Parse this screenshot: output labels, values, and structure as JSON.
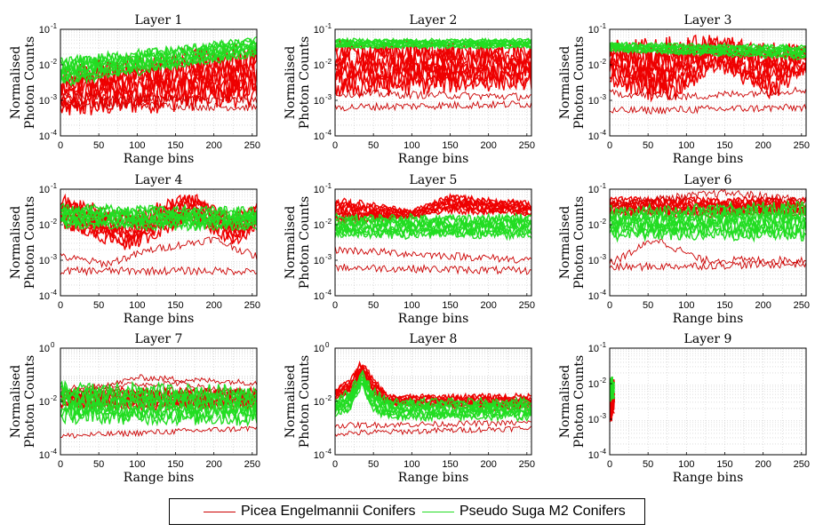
{
  "chart_data": [
    {
      "type": "line",
      "title": "Layer 1",
      "xlabel": "Range bins",
      "ylabel": [
        "Normalised",
        "Photon Counts"
      ],
      "xlim": [
        0,
        256
      ],
      "ylim_exp": [
        -4,
        -1
      ],
      "xticks": [
        "0",
        "50",
        "100",
        "150",
        "200",
        "250"
      ],
      "yticks": [
        -4,
        -3,
        -2,
        -1
      ],
      "series": [
        {
          "name": "Picea Engelmannii Conifers",
          "color": "#ee0000",
          "band": {
            "x": [
              0,
              256
            ],
            "low": [
              -3.3,
              -2.9
            ],
            "high": [
              -2.2,
              -1.6
            ]
          },
          "lines": [
            {
              "x": [
                0,
                256
              ],
              "y": [
                -3.1,
                -3.2
              ]
            },
            {
              "x": [
                0,
                256
              ],
              "y": [
                -2.9,
                -3.0
              ]
            }
          ]
        },
        {
          "name": "Pseudo Suga M2 Conifers",
          "color": "#22dd22",
          "band": {
            "x": [
              0,
              256
            ],
            "low": [
              -2.5,
              -1.7
            ],
            "high": [
              -1.9,
              -1.3
            ]
          },
          "lines": []
        }
      ]
    },
    {
      "type": "line",
      "title": "Layer 2",
      "xlabel": "Range bins",
      "ylabel": [
        "Normalised",
        "Photon Counts"
      ],
      "xlim": [
        0,
        256
      ],
      "ylim_exp": [
        -4,
        -1
      ],
      "xticks": [
        "0",
        "50",
        "100",
        "150",
        "200",
        "250"
      ],
      "yticks": [
        -4,
        -3,
        -2,
        -1
      ],
      "series": [
        {
          "name": "Picea Engelmannii Conifers",
          "color": "#ee0000",
          "band": {
            "x": [
              0,
              256
            ],
            "low": [
              -2.7,
              -2.5
            ],
            "high": [
              -1.5,
              -1.6
            ]
          },
          "lines": [
            {
              "x": [
                0,
                256
              ],
              "y": [
                -3.2,
                -3.1
              ]
            },
            {
              "x": [
                0,
                256
              ],
              "y": [
                -2.8,
                -2.9
              ]
            }
          ]
        },
        {
          "name": "Pseudo Suga M2 Conifers",
          "color": "#22dd22",
          "band": {
            "x": [
              0,
              256
            ],
            "low": [
              -1.5,
              -1.5
            ],
            "high": [
              -1.3,
              -1.3
            ]
          },
          "lines": []
        }
      ]
    },
    {
      "type": "line",
      "title": "Layer 3",
      "xlabel": "Range bins",
      "ylabel": [
        "Normalised",
        "Photon Counts"
      ],
      "xlim": [
        0,
        256
      ],
      "ylim_exp": [
        -4,
        -1
      ],
      "xticks": [
        "0",
        "50",
        "100",
        "150",
        "200",
        "250"
      ],
      "yticks": [
        -4,
        -3,
        -2,
        -1
      ],
      "series": [
        {
          "name": "Picea Engelmannii Conifers",
          "color": "#ee0000",
          "band": {
            "x": [
              0,
              75,
              140,
              210,
              256
            ],
            "low": [
              -2.4,
              -2.9,
              -2.0,
              -2.8,
              -2.1
            ],
            "high": [
              -1.5,
              -1.5,
              -1.3,
              -1.6,
              -1.5
            ]
          },
          "lines": [
            {
              "x": [
                0,
                256
              ],
              "y": [
                -3.3,
                -3.2
              ]
            },
            {
              "x": [
                0,
                100,
                256
              ],
              "y": [
                -2.8,
                -2.9,
                -2.7
              ]
            }
          ]
        },
        {
          "name": "Pseudo Suga M2 Conifers",
          "color": "#22dd22",
          "band": {
            "x": [
              0,
              256
            ],
            "low": [
              -1.6,
              -1.8
            ],
            "high": [
              -1.4,
              -1.5
            ]
          },
          "lines": []
        }
      ]
    },
    {
      "type": "line",
      "title": "Layer 4",
      "xlabel": "Range bins",
      "ylabel": [
        "Normalised",
        "Photon Counts"
      ],
      "xlim": [
        0,
        256
      ],
      "ylim_exp": [
        -4,
        -1
      ],
      "xticks": [
        "0",
        "50",
        "100",
        "150",
        "200",
        "250"
      ],
      "yticks": [
        -4,
        -3,
        -2,
        -1
      ],
      "series": [
        {
          "name": "Picea Engelmannii Conifers",
          "color": "#ee0000",
          "band": {
            "x": [
              0,
              90,
              170,
              230,
              256
            ],
            "low": [
              -2.0,
              -2.6,
              -1.8,
              -2.5,
              -2.0
            ],
            "high": [
              -1.3,
              -1.8,
              -1.2,
              -1.8,
              -1.5
            ]
          },
          "lines": [
            {
              "x": [
                0,
                256
              ],
              "y": [
                -3.3,
                -3.3
              ]
            },
            {
              "x": [
                0,
                60,
                120,
                200,
                256
              ],
              "y": [
                -2.9,
                -3.1,
                -2.7,
                -2.4,
                -2.9
              ]
            }
          ]
        },
        {
          "name": "Pseudo Suga M2 Conifers",
          "color": "#22dd22",
          "band": {
            "x": [
              0,
              256
            ],
            "low": [
              -2.0,
              -2.1
            ],
            "high": [
              -1.5,
              -1.6
            ]
          },
          "lines": []
        }
      ]
    },
    {
      "type": "line",
      "title": "Layer 5",
      "xlabel": "Range bins",
      "ylabel": [
        "Normalised",
        "Photon Counts"
      ],
      "xlim": [
        0,
        256
      ],
      "ylim_exp": [
        -4,
        -1
      ],
      "xticks": [
        "0",
        "50",
        "100",
        "150",
        "200",
        "250"
      ],
      "yticks": [
        -4,
        -3,
        -2,
        -1
      ],
      "series": [
        {
          "name": "Picea Engelmannii Conifers",
          "color": "#ee0000",
          "band": {
            "x": [
              0,
              100,
              150,
              256
            ],
            "low": [
              -1.9,
              -1.8,
              -1.6,
              -1.7
            ],
            "high": [
              -1.3,
              -1.6,
              -1.2,
              -1.4
            ]
          },
          "lines": [
            {
              "x": [
                0,
                256
              ],
              "y": [
                -3.2,
                -3.3
              ]
            },
            {
              "x": [
                0,
                256
              ],
              "y": [
                -2.7,
                -3.0
              ]
            }
          ]
        },
        {
          "name": "Pseudo Suga M2 Conifers",
          "color": "#22dd22",
          "band": {
            "x": [
              0,
              256
            ],
            "low": [
              -2.3,
              -2.3
            ],
            "high": [
              -1.8,
              -1.8
            ]
          },
          "lines": []
        }
      ]
    },
    {
      "type": "line",
      "title": "Layer 6",
      "xlabel": "Range bins",
      "ylabel": [
        "Normalised",
        "Photon Counts"
      ],
      "xlim": [
        0,
        256
      ],
      "ylim_exp": [
        -4,
        -1
      ],
      "xticks": [
        "0",
        "50",
        "100",
        "150",
        "200",
        "250"
      ],
      "yticks": [
        -4,
        -3,
        -2,
        -1
      ],
      "series": [
        {
          "name": "Picea Engelmannii Conifers",
          "color": "#ee0000",
          "band": {
            "x": [
              0,
              256
            ],
            "low": [
              -1.7,
              -1.7
            ],
            "high": [
              -1.3,
              -1.3
            ]
          },
          "lines": [
            {
              "x": [
                0,
                256
              ],
              "y": [
                -3.2,
                -3.1
              ]
            },
            {
              "x": [
                0,
                60,
                120,
                256
              ],
              "y": [
                -3.1,
                -2.4,
                -3.0,
                -3.0
              ]
            },
            {
              "x": [
                0,
                150,
                256
              ],
              "y": [
                -1.4,
                -1.1,
                -1.3
              ]
            }
          ]
        },
        {
          "name": "Pseudo Suga M2 Conifers",
          "color": "#22dd22",
          "band": {
            "x": [
              0,
              256
            ],
            "low": [
              -2.3,
              -2.3
            ],
            "high": [
              -1.6,
              -1.5
            ]
          },
          "lines": []
        }
      ]
    },
    {
      "type": "line",
      "title": "Layer 7",
      "xlabel": "Range bins",
      "ylabel": [
        "Normalised",
        "Photon Counts"
      ],
      "xlim": [
        0,
        256
      ],
      "ylim_exp": [
        -4,
        0
      ],
      "xticks": [
        "0",
        "50",
        "100",
        "150",
        "200",
        "250"
      ],
      "yticks": [
        -4,
        -2,
        0
      ],
      "series": [
        {
          "name": "Picea Engelmannii Conifers",
          "color": "#ee0000",
          "band": {
            "x": [
              0,
              256
            ],
            "low": [
              -2.2,
              -2.2
            ],
            "high": [
              -1.6,
              -1.6
            ]
          },
          "lines": [
            {
              "x": [
                0,
                256
              ],
              "y": [
                -3.3,
                -3.0
              ]
            },
            {
              "x": [
                0,
                100,
                256
              ],
              "y": [
                -1.9,
                -1.1,
                -1.3
              ]
            },
            {
              "x": [
                0,
                150,
                256
              ],
              "y": [
                -1.5,
                -1.3,
                -1.8
              ]
            }
          ]
        },
        {
          "name": "Pseudo Suga M2 Conifers",
          "color": "#22dd22",
          "band": {
            "x": [
              0,
              256
            ],
            "low": [
              -2.6,
              -2.7
            ],
            "high": [
              -1.5,
              -1.6
            ]
          },
          "lines": []
        }
      ]
    },
    {
      "type": "line",
      "title": "Layer 8",
      "xlabel": "Range bins",
      "ylabel": [
        "Normalised",
        "Photon Counts"
      ],
      "xlim": [
        0,
        256
      ],
      "ylim_exp": [
        -4,
        0
      ],
      "xticks": [
        "0",
        "50",
        "100",
        "150",
        "200",
        "250"
      ],
      "yticks": [
        -4,
        -2,
        0
      ],
      "series": [
        {
          "name": "Picea Engelmannii Conifers",
          "color": "#ee0000",
          "band": {
            "x": [
              0,
              20,
              35,
              50,
              70,
              256
            ],
            "low": [
              -1.9,
              -1.7,
              -1.0,
              -1.7,
              -2.1,
              -2.3
            ],
            "high": [
              -1.6,
              -1.2,
              -0.5,
              -1.2,
              -1.8,
              -1.8
            ]
          },
          "lines": [
            {
              "x": [
                0,
                256
              ],
              "y": [
                -3.2,
                -3.0
              ]
            },
            {
              "x": [
                0,
                256
              ],
              "y": [
                -2.9,
                -2.8
              ]
            }
          ]
        },
        {
          "name": "Pseudo Suga M2 Conifers",
          "color": "#22dd22",
          "band": {
            "x": [
              0,
              20,
              35,
              50,
              70,
              256
            ],
            "low": [
              -2.5,
              -2.3,
              -1.4,
              -2.3,
              -2.6,
              -2.6
            ],
            "high": [
              -2.0,
              -1.6,
              -0.9,
              -1.6,
              -2.0,
              -2.0
            ]
          },
          "lines": []
        }
      ]
    },
    {
      "type": "line",
      "title": "Layer 9",
      "xlabel": "Range bins",
      "ylabel": [
        "Normalised",
        "Photon Counts"
      ],
      "xlim": [
        0,
        256
      ],
      "ylim_exp": [
        -4,
        -1
      ],
      "xticks": [
        "0",
        "50",
        "100",
        "150",
        "200",
        "250"
      ],
      "yticks": [
        -4,
        -3,
        -2,
        -1
      ],
      "series": [
        {
          "name": "Picea Engelmannii Conifers",
          "color": "#ee0000",
          "band": {
            "x": [
              0,
              6
            ],
            "low": [
              -3.1,
              -2.7
            ],
            "high": [
              -2.2,
              -2.0
            ]
          },
          "lines": []
        },
        {
          "name": "Pseudo Suga M2 Conifers",
          "color": "#22dd22",
          "band": {
            "x": [
              0,
              6
            ],
            "low": [
              -2.4,
              -2.4
            ],
            "high": [
              -1.9,
              -1.9
            ]
          },
          "lines": []
        }
      ]
    }
  ],
  "legend": [
    {
      "label": "Picea Engelmannii Conifers",
      "color": "#cc0000"
    },
    {
      "label": "Pseudo Suga M2 Conifers",
      "color": "#22dd22"
    }
  ]
}
